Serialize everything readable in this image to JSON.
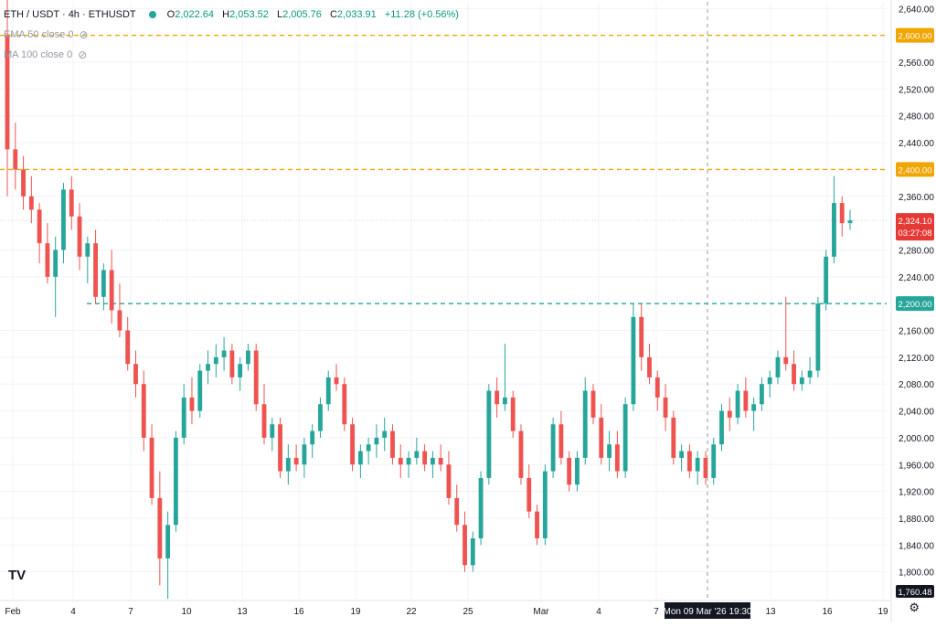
{
  "legend": {
    "symbol": "ETH / USDT · 4h · ETHUSDT",
    "open_label": "O",
    "open": "2,022.64",
    "high_label": "H",
    "high": "2,053.52",
    "low_label": "L",
    "low": "2,005.76",
    "close_label": "C",
    "close": "2,033.91",
    "change": "+11.28 (+0.56%)",
    "indicator_1": "EMA 50 close 0",
    "indicator_2": "MA 100 close 0"
  },
  "colors": {
    "up": "#26a69a",
    "down": "#ef5350",
    "resistance": "#f0a500",
    "support": "#26a69a",
    "last_price": "#e53935"
  },
  "price_axis": {
    "ticks": [
      "2,640.00",
      "2,560.00",
      "2,520.00",
      "2,480.00",
      "2,440.00",
      "2,360.00",
      "2,280.00",
      "2,240.00",
      "2,160.00",
      "2,120.00",
      "2,080.00",
      "2,040.00",
      "2,000.00",
      "1,960.00",
      "1,920.00",
      "1,880.00",
      "1,840.00",
      "1,800.00"
    ]
  },
  "price_labels": {
    "level_1": "2,600.00",
    "level_2": "2,400.00",
    "level_3": "2,200.00",
    "last_price": "2,324.10",
    "countdown": "03:27:08",
    "bottom": "1,760.48"
  },
  "time_axis": {
    "labels": [
      "Feb",
      "4",
      "7",
      "10",
      "13",
      "16",
      "19",
      "22",
      "25",
      "Mar",
      "4",
      "7",
      "13",
      "16",
      "19"
    ],
    "crosshair_label": "Mon 09 Mar '26   19:30"
  },
  "chart_data": {
    "type": "candlestick",
    "symbol": "ETHUSDT",
    "interval": "4h",
    "ylim": [
      1760,
      2650
    ],
    "horizontal_levels": [
      {
        "price": 2600,
        "style": "dashed",
        "color": "#f0a500"
      },
      {
        "price": 2400,
        "style": "dashed",
        "color": "#f0a500"
      },
      {
        "price": 2200,
        "style": "dashed",
        "color": "#26a69a"
      }
    ],
    "last_price": 2324.1,
    "candles": [
      [
        2600,
        2660,
        2360,
        2430
      ],
      [
        2430,
        2470,
        2370,
        2400
      ],
      [
        2400,
        2420,
        2340,
        2360
      ],
      [
        2360,
        2390,
        2320,
        2340
      ],
      [
        2340,
        2350,
        2260,
        2290
      ],
      [
        2290,
        2320,
        2230,
        2240
      ],
      [
        2240,
        2300,
        2180,
        2280
      ],
      [
        2280,
        2380,
        2260,
        2370
      ],
      [
        2370,
        2390,
        2310,
        2330
      ],
      [
        2330,
        2350,
        2250,
        2270
      ],
      [
        2270,
        2300,
        2230,
        2290
      ],
      [
        2290,
        2310,
        2200,
        2210
      ],
      [
        2210,
        2260,
        2190,
        2250
      ],
      [
        2250,
        2280,
        2170,
        2190
      ],
      [
        2190,
        2230,
        2150,
        2160
      ],
      [
        2160,
        2180,
        2100,
        2110
      ],
      [
        2110,
        2130,
        2060,
        2080
      ],
      [
        2080,
        2100,
        1980,
        2000
      ],
      [
        2000,
        2020,
        1900,
        1910
      ],
      [
        1910,
        1950,
        1780,
        1820
      ],
      [
        1820,
        1890,
        1760,
        1870
      ],
      [
        1870,
        2010,
        1860,
        2000
      ],
      [
        2000,
        2080,
        1990,
        2060
      ],
      [
        2060,
        2090,
        2020,
        2040
      ],
      [
        2040,
        2110,
        2030,
        2100
      ],
      [
        2100,
        2130,
        2080,
        2110
      ],
      [
        2110,
        2140,
        2090,
        2120
      ],
      [
        2120,
        2150,
        2100,
        2130
      ],
      [
        2130,
        2140,
        2080,
        2090
      ],
      [
        2090,
        2120,
        2070,
        2110
      ],
      [
        2110,
        2140,
        2100,
        2130
      ],
      [
        2130,
        2140,
        2040,
        2050
      ],
      [
        2050,
        2080,
        1990,
        2000
      ],
      [
        2000,
        2030,
        1980,
        2020
      ],
      [
        2020,
        2030,
        1940,
        1950
      ],
      [
        1950,
        1990,
        1930,
        1970
      ],
      [
        1970,
        1990,
        1950,
        1960
      ],
      [
        1960,
        2000,
        1940,
        1990
      ],
      [
        1990,
        2020,
        1970,
        2010
      ],
      [
        2010,
        2060,
        2000,
        2050
      ],
      [
        2050,
        2100,
        2040,
        2090
      ],
      [
        2090,
        2110,
        2070,
        2080
      ],
      [
        2080,
        2090,
        2010,
        2020
      ],
      [
        2020,
        2030,
        1950,
        1960
      ],
      [
        1960,
        1990,
        1940,
        1980
      ],
      [
        1980,
        2000,
        1960,
        1990
      ],
      [
        1990,
        2020,
        1970,
        2000
      ],
      [
        2000,
        2030,
        1980,
        2010
      ],
      [
        2010,
        2020,
        1960,
        1970
      ],
      [
        1970,
        1990,
        1940,
        1960
      ],
      [
        1960,
        1980,
        1940,
        1970
      ],
      [
        1970,
        2000,
        1960,
        1980
      ],
      [
        1980,
        1990,
        1950,
        1960
      ],
      [
        1960,
        1980,
        1940,
        1970
      ],
      [
        1970,
        1990,
        1950,
        1960
      ],
      [
        1960,
        1980,
        1900,
        1910
      ],
      [
        1910,
        1930,
        1860,
        1870
      ],
      [
        1870,
        1890,
        1800,
        1810
      ],
      [
        1810,
        1860,
        1800,
        1850
      ],
      [
        1850,
        1950,
        1840,
        1940
      ],
      [
        1940,
        2080,
        1930,
        2070
      ],
      [
        2070,
        2090,
        2030,
        2050
      ],
      [
        2050,
        2140,
        2040,
        2060
      ],
      [
        2060,
        2070,
        2000,
        2010
      ],
      [
        2010,
        2020,
        1930,
        1940
      ],
      [
        1940,
        1960,
        1880,
        1890
      ],
      [
        1890,
        1900,
        1840,
        1850
      ],
      [
        1850,
        1960,
        1840,
        1950
      ],
      [
        1950,
        2030,
        1940,
        2020
      ],
      [
        2020,
        2040,
        1960,
        1970
      ],
      [
        1970,
        1980,
        1920,
        1930
      ],
      [
        1930,
        1980,
        1920,
        1970
      ],
      [
        1970,
        2090,
        1960,
        2070
      ],
      [
        2070,
        2080,
        2020,
        2030
      ],
      [
        2030,
        2050,
        1960,
        1970
      ],
      [
        1970,
        2010,
        1950,
        1990
      ],
      [
        1990,
        2010,
        1940,
        1950
      ],
      [
        1950,
        2060,
        1940,
        2050
      ],
      [
        2050,
        2200,
        2040,
        2180
      ],
      [
        2180,
        2200,
        2100,
        2120
      ],
      [
        2120,
        2140,
        2080,
        2090
      ],
      [
        2090,
        2100,
        2040,
        2060
      ],
      [
        2060,
        2080,
        2010,
        2030
      ],
      [
        2030,
        2040,
        1960,
        1970
      ],
      [
        1970,
        1990,
        1950,
        1980
      ],
      [
        1980,
        1990,
        1940,
        1950
      ],
      [
        1950,
        1980,
        1930,
        1970
      ],
      [
        1970,
        1980,
        1930,
        1940
      ],
      [
        1940,
        2000,
        1930,
        1990
      ],
      [
        1990,
        2050,
        1980,
        2040
      ],
      [
        2040,
        2060,
        2010,
        2030
      ],
      [
        2030,
        2080,
        2020,
        2070
      ],
      [
        2070,
        2090,
        2030,
        2040
      ],
      [
        2040,
        2060,
        2010,
        2050
      ],
      [
        2050,
        2090,
        2040,
        2080
      ],
      [
        2080,
        2100,
        2060,
        2090
      ],
      [
        2090,
        2130,
        2080,
        2120
      ],
      [
        2120,
        2210,
        2100,
        2110
      ],
      [
        2110,
        2130,
        2070,
        2080
      ],
      [
        2080,
        2100,
        2070,
        2090
      ],
      [
        2090,
        2120,
        2080,
        2100
      ],
      [
        2100,
        2210,
        2090,
        2200
      ],
      [
        2200,
        2280,
        2190,
        2270
      ],
      [
        2270,
        2390,
        2260,
        2350
      ],
      [
        2350,
        2360,
        2300,
        2320
      ],
      [
        2320,
        2340,
        2310,
        2324.1
      ]
    ]
  }
}
